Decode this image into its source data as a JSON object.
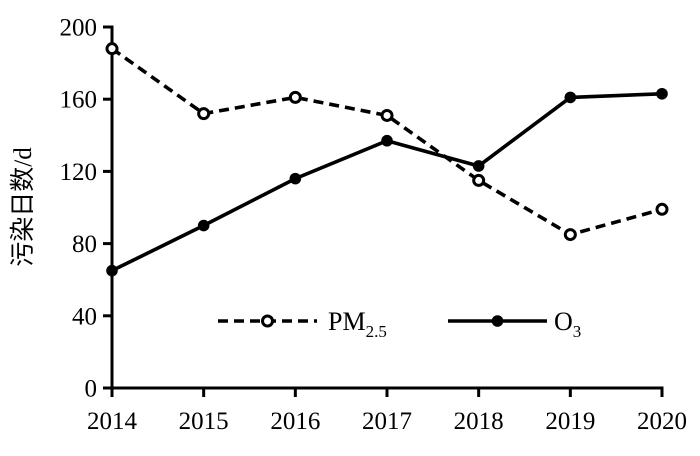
{
  "colors": {
    "foreground": "#000000",
    "background": "#ffffff",
    "marker_fill_open": "#ffffff"
  },
  "chart_data": {
    "type": "line",
    "title": "",
    "xlabel": "",
    "ylabel": "污染日数/d",
    "categories": [
      "2014",
      "2015",
      "2016",
      "2017",
      "2018",
      "2019",
      "2020"
    ],
    "ylim": [
      0,
      200
    ],
    "yticks": [
      0,
      40,
      80,
      120,
      160,
      200
    ],
    "grid": false,
    "legend_position": "inside-bottom-center",
    "series": [
      {
        "name": "PM2.5",
        "label_main": "PM",
        "label_sub": "2.5",
        "values": [
          188,
          152,
          161,
          151,
          115,
          85,
          99
        ],
        "line_style": "dashed",
        "marker": "open-circle",
        "color": "#000000"
      },
      {
        "name": "O3",
        "label_main": "O",
        "label_sub": "3",
        "values": [
          65,
          90,
          116,
          137,
          123,
          161,
          163
        ],
        "line_style": "solid",
        "marker": "filled-circle",
        "color": "#000000"
      }
    ]
  }
}
